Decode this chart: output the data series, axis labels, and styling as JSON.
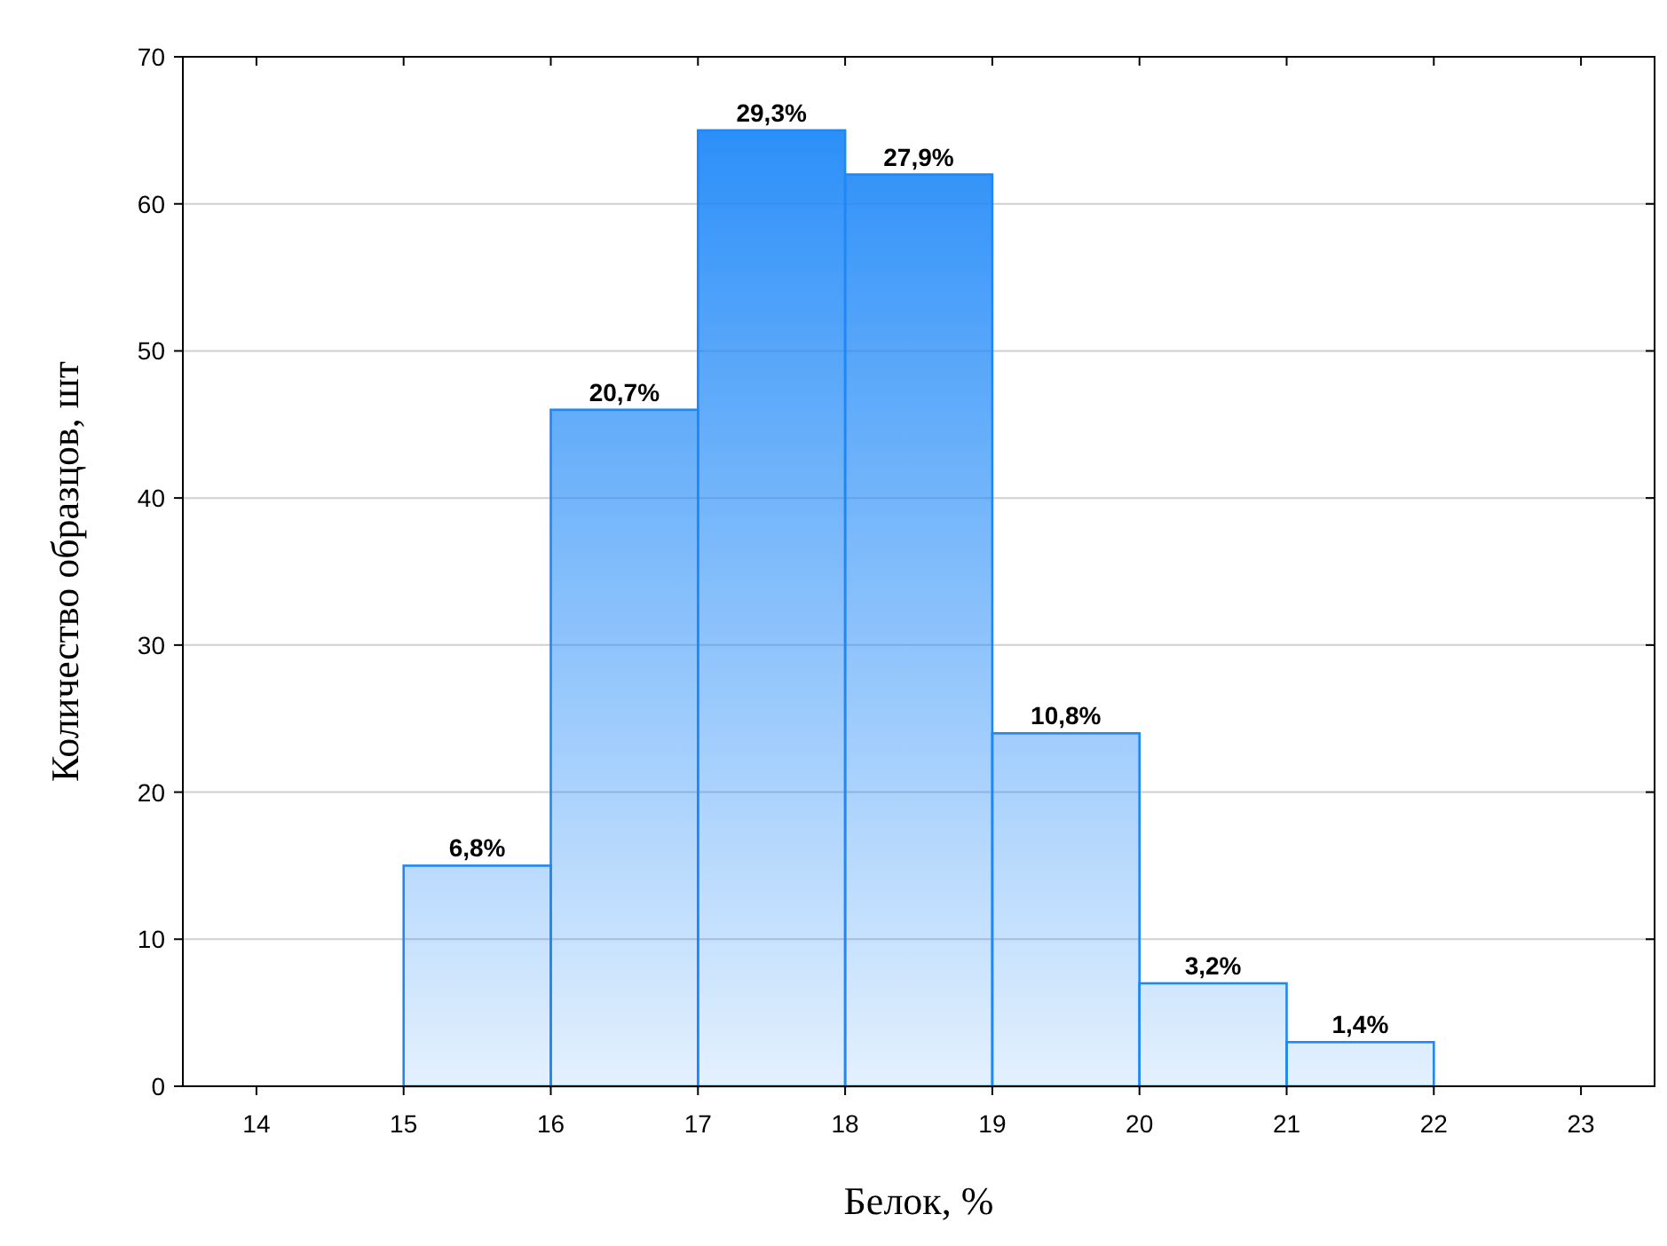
{
  "chart_data": {
    "type": "histogram",
    "xlabel": "Белок, %",
    "ylabel": "Количество образцов, шт",
    "bins": [
      15,
      16,
      17,
      18,
      19,
      20,
      21,
      22
    ],
    "values": [
      15,
      46,
      65,
      62,
      24,
      7,
      3
    ],
    "annotations": [
      {
        "text": "6,8%",
        "x": 15.5,
        "y": 15
      },
      {
        "text": "20,7%",
        "x": 16.5,
        "y": 46
      },
      {
        "text": "29,3%",
        "x": 17.5,
        "y": 65
      },
      {
        "text": "27,9%",
        "x": 18.5,
        "y": 62
      },
      {
        "text": "10,8%",
        "x": 19.5,
        "y": 24
      },
      {
        "text": "3,2%",
        "x": 20.5,
        "y": 7
      },
      {
        "text": "1,4%",
        "x": 21.5,
        "y": 3
      }
    ],
    "color": "#1e88f8",
    "xlim": [
      13.5,
      23.5
    ],
    "xticks": [
      14,
      15,
      16,
      17,
      18,
      19,
      20,
      21,
      22,
      23
    ],
    "ylim": [
      0,
      70
    ],
    "yticks": [
      0,
      10,
      20,
      30,
      40,
      50,
      60,
      70
    ],
    "grid": "y"
  }
}
